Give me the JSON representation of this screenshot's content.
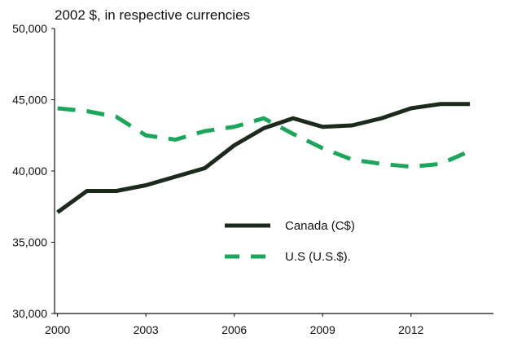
{
  "chart_data": {
    "type": "line",
    "title": "2002 $, in respective currencies",
    "x": [
      2000,
      2001,
      2002,
      2003,
      2004,
      2005,
      2006,
      2007,
      2008,
      2009,
      2010,
      2011,
      2012,
      2013,
      2014
    ],
    "x_tick_labels": [
      "2000",
      "2003",
      "2006",
      "2009",
      "2012"
    ],
    "x_ticks": [
      2000,
      2003,
      2006,
      2009,
      2012
    ],
    "y_tick_labels": [
      "50,000",
      "45,000",
      "40,000",
      "35,000",
      "30,000"
    ],
    "y_ticks": [
      50000,
      45000,
      40000,
      35000,
      30000
    ],
    "xlim": [
      1999.9,
      2014.8
    ],
    "ylim": [
      30000,
      50000
    ],
    "grid": false,
    "legend_position": "bottom-right",
    "series": [
      {
        "name": "Canada (C$)",
        "style": "solid",
        "color": "#1b2a1c",
        "values": [
          37100,
          38600,
          38600,
          39000,
          39600,
          40200,
          41800,
          43000,
          43700,
          43100,
          43200,
          43700,
          44400,
          44700,
          44700
        ]
      },
      {
        "name": "U.S (U.S.$).",
        "style": "dashed",
        "color": "#1fa55b",
        "values": [
          44400,
          44200,
          43800,
          42500,
          42200,
          42800,
          43100,
          43700,
          42600,
          41600,
          40800,
          40500,
          40300,
          40500,
          41400
        ]
      }
    ]
  }
}
